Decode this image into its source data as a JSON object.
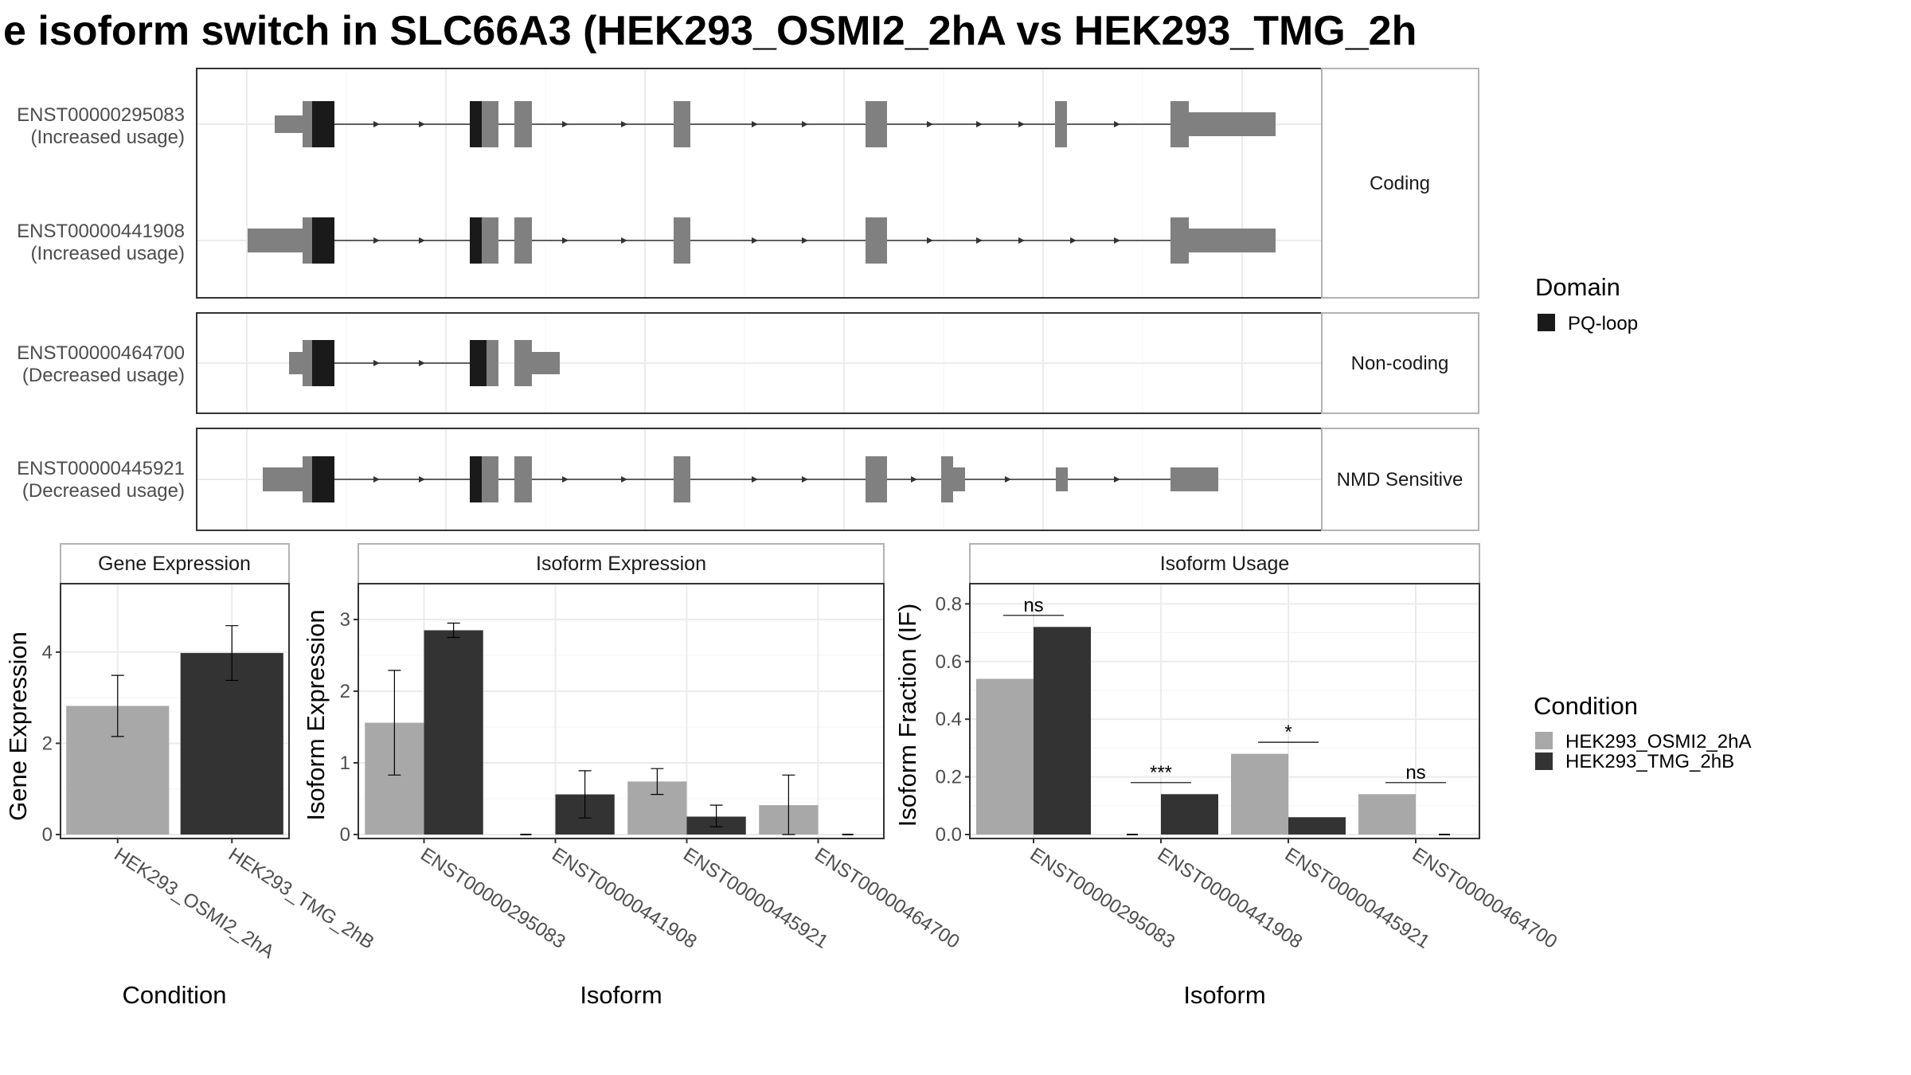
{
  "title": "e isoform switch in SLC66A3 (HEK293_OSMI2_2hA vs HEK293_TMG_2h",
  "colors": {
    "exon": "#808080",
    "domain": "#1a1a1a",
    "cond_a": "#a8a8a8",
    "cond_b": "#333333",
    "grid": "#ebebeb",
    "panel_border": "#333333",
    "strip_border": "#b3b3b3"
  },
  "structure": {
    "facets": [
      "Coding",
      "Non-coding",
      "NMD Sensitive"
    ],
    "transcripts": [
      {
        "id": "ENST00000295083",
        "note": "(Increased usage)",
        "facet": "Coding"
      },
      {
        "id": "ENST00000441908",
        "note": "(Increased usage)",
        "facet": "Coding"
      },
      {
        "id": "ENST00000464700",
        "note": "(Decreased usage)",
        "facet": "Non-coding"
      },
      {
        "id": "ENST00000445921",
        "note": "(Decreased usage)",
        "facet": "NMD Sensitive"
      }
    ],
    "legend_title": "Domain",
    "legend_items": [
      "PQ-loop"
    ]
  },
  "chart_data": [
    {
      "type": "bar",
      "strip": "Gene Expression",
      "xlabel": "Condition",
      "ylabel": "Gene Expression",
      "ylim": [
        0,
        5.5
      ],
      "yticks": [
        0,
        2,
        4
      ],
      "categories": [
        "HEK293_OSMI2_2hA",
        "HEK293_TMG_2hB"
      ],
      "values": [
        2.82,
        3.98
      ],
      "errors_low": [
        2.15,
        3.38
      ],
      "errors_high": [
        3.49,
        4.58
      ]
    },
    {
      "type": "bar",
      "strip": "Isoform Expression",
      "xlabel": "Isoform",
      "ylabel": "Isoform Expression",
      "ylim": [
        0,
        3.5
      ],
      "yticks": [
        0,
        1,
        2,
        3
      ],
      "categories": [
        "ENST00000295083",
        "ENST00000441908",
        "ENST00000445921",
        "ENST00000464700"
      ],
      "series": [
        {
          "name": "HEK293_OSMI2_2hA",
          "values": [
            1.56,
            0.0,
            0.74,
            0.41
          ],
          "errors_low": [
            0.83,
            0.0,
            0.56,
            0.0
          ],
          "errors_high": [
            2.29,
            0.0,
            0.92,
            0.83
          ]
        },
        {
          "name": "HEK293_TMG_2hB",
          "values": [
            2.85,
            0.56,
            0.25,
            0.0
          ],
          "errors_low": [
            2.75,
            0.23,
            0.11,
            0.0
          ],
          "errors_high": [
            2.95,
            0.89,
            0.41,
            0.0
          ]
        }
      ]
    },
    {
      "type": "bar",
      "strip": "Isoform Usage",
      "xlabel": "Isoform",
      "ylabel": "Isoform Fraction (IF)",
      "ylim": [
        0,
        0.87
      ],
      "yticks": [
        0.0,
        0.2,
        0.4,
        0.6,
        0.8
      ],
      "ytick_labels": [
        "0.0",
        "0.2",
        "0.4",
        "0.6",
        "0.8"
      ],
      "categories": [
        "ENST00000295083",
        "ENST00000441908",
        "ENST00000445921",
        "ENST00000464700"
      ],
      "series": [
        {
          "name": "HEK293_OSMI2_2hA",
          "values": [
            0.54,
            0.0,
            0.28,
            0.14
          ]
        },
        {
          "name": "HEK293_TMG_2hB",
          "values": [
            0.72,
            0.14,
            0.06,
            0.0
          ]
        }
      ],
      "significance": [
        "ns",
        "***",
        "*",
        "ns"
      ],
      "significance_y": [
        0.76,
        0.18,
        0.32,
        0.18
      ]
    }
  ],
  "legend": {
    "title": "Condition",
    "items": [
      "HEK293_OSMI2_2hA",
      "HEK293_TMG_2hB"
    ]
  }
}
